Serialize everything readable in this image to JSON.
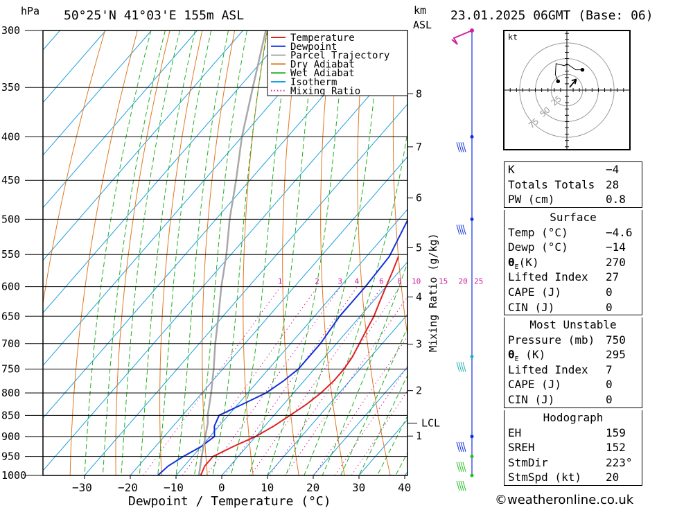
{
  "header": {
    "pressure_unit": "hPa",
    "location": "50°25'N  41°03'E  155m  ASL",
    "km_label": "km",
    "asl_label": "ASL",
    "datetime": "23.01.2025  06GMT  (Base: 06)"
  },
  "chart_data": {
    "type": "line",
    "pressure_levels": [
      300,
      350,
      400,
      450,
      500,
      550,
      600,
      650,
      700,
      750,
      800,
      850,
      900,
      950,
      1000
    ],
    "xlabel": "Dewpoint / Temperature (°C)",
    "xticks": [
      -30,
      -20,
      -10,
      0,
      10,
      20,
      30,
      40
    ],
    "x_range": [
      -40,
      40
    ],
    "y_range_hpa": [
      300,
      1000
    ],
    "y_scale": "log",
    "height_km_ticks": [
      {
        "label": "8",
        "p": 356
      },
      {
        "label": "7",
        "p": 411
      },
      {
        "label": "6",
        "p": 472
      },
      {
        "label": "5",
        "p": 540
      },
      {
        "label": "4",
        "p": 617
      },
      {
        "label": "3",
        "p": 701
      },
      {
        "label": "2",
        "p": 795
      },
      {
        "label": "1",
        "p": 899
      }
    ],
    "lcl": {
      "label": "LCL",
      "p": 868
    },
    "mixing_ratio_axis_label": "Mixing Ratio (g/kg)",
    "mixing_ratio_labels": [
      "1",
      "2",
      "3",
      "4",
      "6",
      "8",
      "10",
      "15",
      "20",
      "25"
    ],
    "mixing_ratio_values": [
      1,
      2,
      3,
      4,
      6,
      8,
      10,
      15,
      20,
      25
    ],
    "legend": [
      "Temperature",
      "Dewpoint",
      "Parcel Trajectory",
      "Dry Adiabat",
      "Wet Adiabat",
      "Isotherm",
      "Mixing Ratio"
    ],
    "legend_position": "top-right",
    "series": [
      {
        "name": "Temperature",
        "color": "#e02020",
        "points": [
          [
            1000,
            -4.6
          ],
          [
            975,
            -5.5
          ],
          [
            950,
            -5.5
          ],
          [
            925,
            -3
          ],
          [
            900,
            0
          ],
          [
            875,
            2
          ],
          [
            850,
            3.5
          ],
          [
            825,
            5
          ],
          [
            800,
            6
          ],
          [
            775,
            6.5
          ],
          [
            750,
            6.5
          ],
          [
            725,
            6
          ],
          [
            700,
            5
          ],
          [
            675,
            4
          ],
          [
            650,
            3
          ],
          [
            625,
            1.5
          ],
          [
            600,
            0
          ],
          [
            575,
            -1.5
          ],
          [
            553,
            -3
          ]
        ]
      },
      {
        "name": "Dewpoint",
        "color": "#1030e0",
        "points": [
          [
            1000,
            -14
          ],
          [
            975,
            -13.5
          ],
          [
            950,
            -12
          ],
          [
            925,
            -10
          ],
          [
            900,
            -9
          ],
          [
            875,
            -11
          ],
          [
            850,
            -12
          ],
          [
            825,
            -9
          ],
          [
            800,
            -6
          ],
          [
            775,
            -4.5
          ],
          [
            750,
            -3.5
          ],
          [
            700,
            -3.5
          ],
          [
            650,
            -4.5
          ],
          [
            600,
            -4.5
          ],
          [
            553,
            -5
          ],
          [
            500,
            -8
          ],
          [
            450,
            -11
          ],
          [
            400,
            -14
          ],
          [
            370,
            -18
          ],
          [
            350,
            -21
          ],
          [
            325,
            -25
          ],
          [
            300,
            -29
          ]
        ]
      },
      {
        "name": "Parcel Trajectory",
        "color": "#a8a8a8",
        "points": [
          [
            1000,
            -5
          ],
          [
            950,
            -8
          ],
          [
            900,
            -11
          ],
          [
            868,
            -13
          ],
          [
            850,
            -14.5
          ],
          [
            800,
            -18
          ],
          [
            750,
            -22
          ],
          [
            700,
            -26.5
          ],
          [
            650,
            -31
          ],
          [
            600,
            -36
          ],
          [
            550,
            -41
          ],
          [
            500,
            -47
          ],
          [
            450,
            -53
          ],
          [
            400,
            -60
          ],
          [
            350,
            -67
          ],
          [
            300,
            -75
          ]
        ]
      }
    ],
    "wind_barbs_hpa": [
      400,
      500,
      725,
      900,
      950,
      1000
    ]
  },
  "hodograph": {
    "unit": "kt",
    "ring_labels": [
      "25",
      "50",
      "75"
    ]
  },
  "indices": {
    "rows": [
      {
        "k": "K",
        "v": "-4"
      },
      {
        "k": "Totals Totals",
        "v": "28"
      },
      {
        "k": "PW (cm)",
        "v": "0.8"
      }
    ]
  },
  "surface": {
    "title": "Surface",
    "rows": [
      {
        "k": "Temp (°C)",
        "v": "-4.6"
      },
      {
        "k": "Dewp (°C)",
        "v": "-14"
      },
      {
        "k": "θE(K)",
        "v": "270"
      },
      {
        "k": "Lifted Index",
        "v": "27"
      },
      {
        "k": "CAPE (J)",
        "v": "0"
      },
      {
        "k": "CIN (J)",
        "v": "0"
      }
    ]
  },
  "most_unstable": {
    "title": "Most Unstable",
    "rows": [
      {
        "k": "Pressure (mb)",
        "v": "750"
      },
      {
        "k": "θE (K)",
        "v": "295"
      },
      {
        "k": "Lifted Index",
        "v": "7"
      },
      {
        "k": "CAPE (J)",
        "v": "0"
      },
      {
        "k": "CIN (J)",
        "v": "0"
      }
    ]
  },
  "hodograph_table": {
    "title": "Hodograph",
    "rows": [
      {
        "k": "EH",
        "v": "159"
      },
      {
        "k": "SREH",
        "v": "152"
      },
      {
        "k": "StmDir",
        "v": "223°"
      },
      {
        "k": "StmSpd (kt)",
        "v": "20"
      }
    ]
  },
  "footer": {
    "copyright": "©weatheronline.co.uk"
  },
  "colors": {
    "temperature": "#e02020",
    "dewpoint": "#1030e0",
    "parcel": "#a8a8a8",
    "dry_adiabat": "#e07820",
    "wet_adiabat": "#20b020",
    "isotherm": "#1aa0e0",
    "mixing_ratio": "#d020a0"
  }
}
